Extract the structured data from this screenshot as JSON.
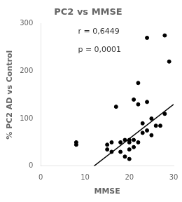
{
  "chart_data": {
    "type": "scatter",
    "title": "PC2 vs MMSE",
    "xlabel": "MMSE",
    "ylabel": "% PC2 AD vs Control",
    "annotations": [
      "r = 0,6449",
      "p = 0,0001"
    ],
    "series": [
      {
        "type": "scatter",
        "color": "#000000",
        "x": [
          8,
          8,
          15,
          15,
          16,
          16,
          17,
          18,
          18,
          19,
          19,
          20,
          20,
          20,
          20,
          21,
          21,
          21,
          22,
          22,
          22,
          23,
          23,
          24,
          24,
          24,
          25,
          25,
          26,
          27,
          28,
          28,
          29
        ],
        "values": [
          50,
          45,
          45,
          35,
          50,
          30,
          125,
          50,
          30,
          55,
          20,
          55,
          50,
          35,
          15,
          140,
          55,
          40,
          175,
          130,
          50,
          90,
          70,
          270,
          135,
          75,
          100,
          65,
          85,
          85,
          110,
          275,
          220
        ]
      },
      {
        "type": "line",
        "color": "#000000",
        "x": [
          12.0,
          30.0
        ],
        "values": [
          0,
          130
        ]
      }
    ],
    "xlim": [
      0,
      30
    ],
    "ylim": [
      0,
      300
    ],
    "xticks": [
      0,
      10,
      20,
      30
    ],
    "yticks": [
      0,
      100,
      200,
      300
    ],
    "grid": false
  }
}
